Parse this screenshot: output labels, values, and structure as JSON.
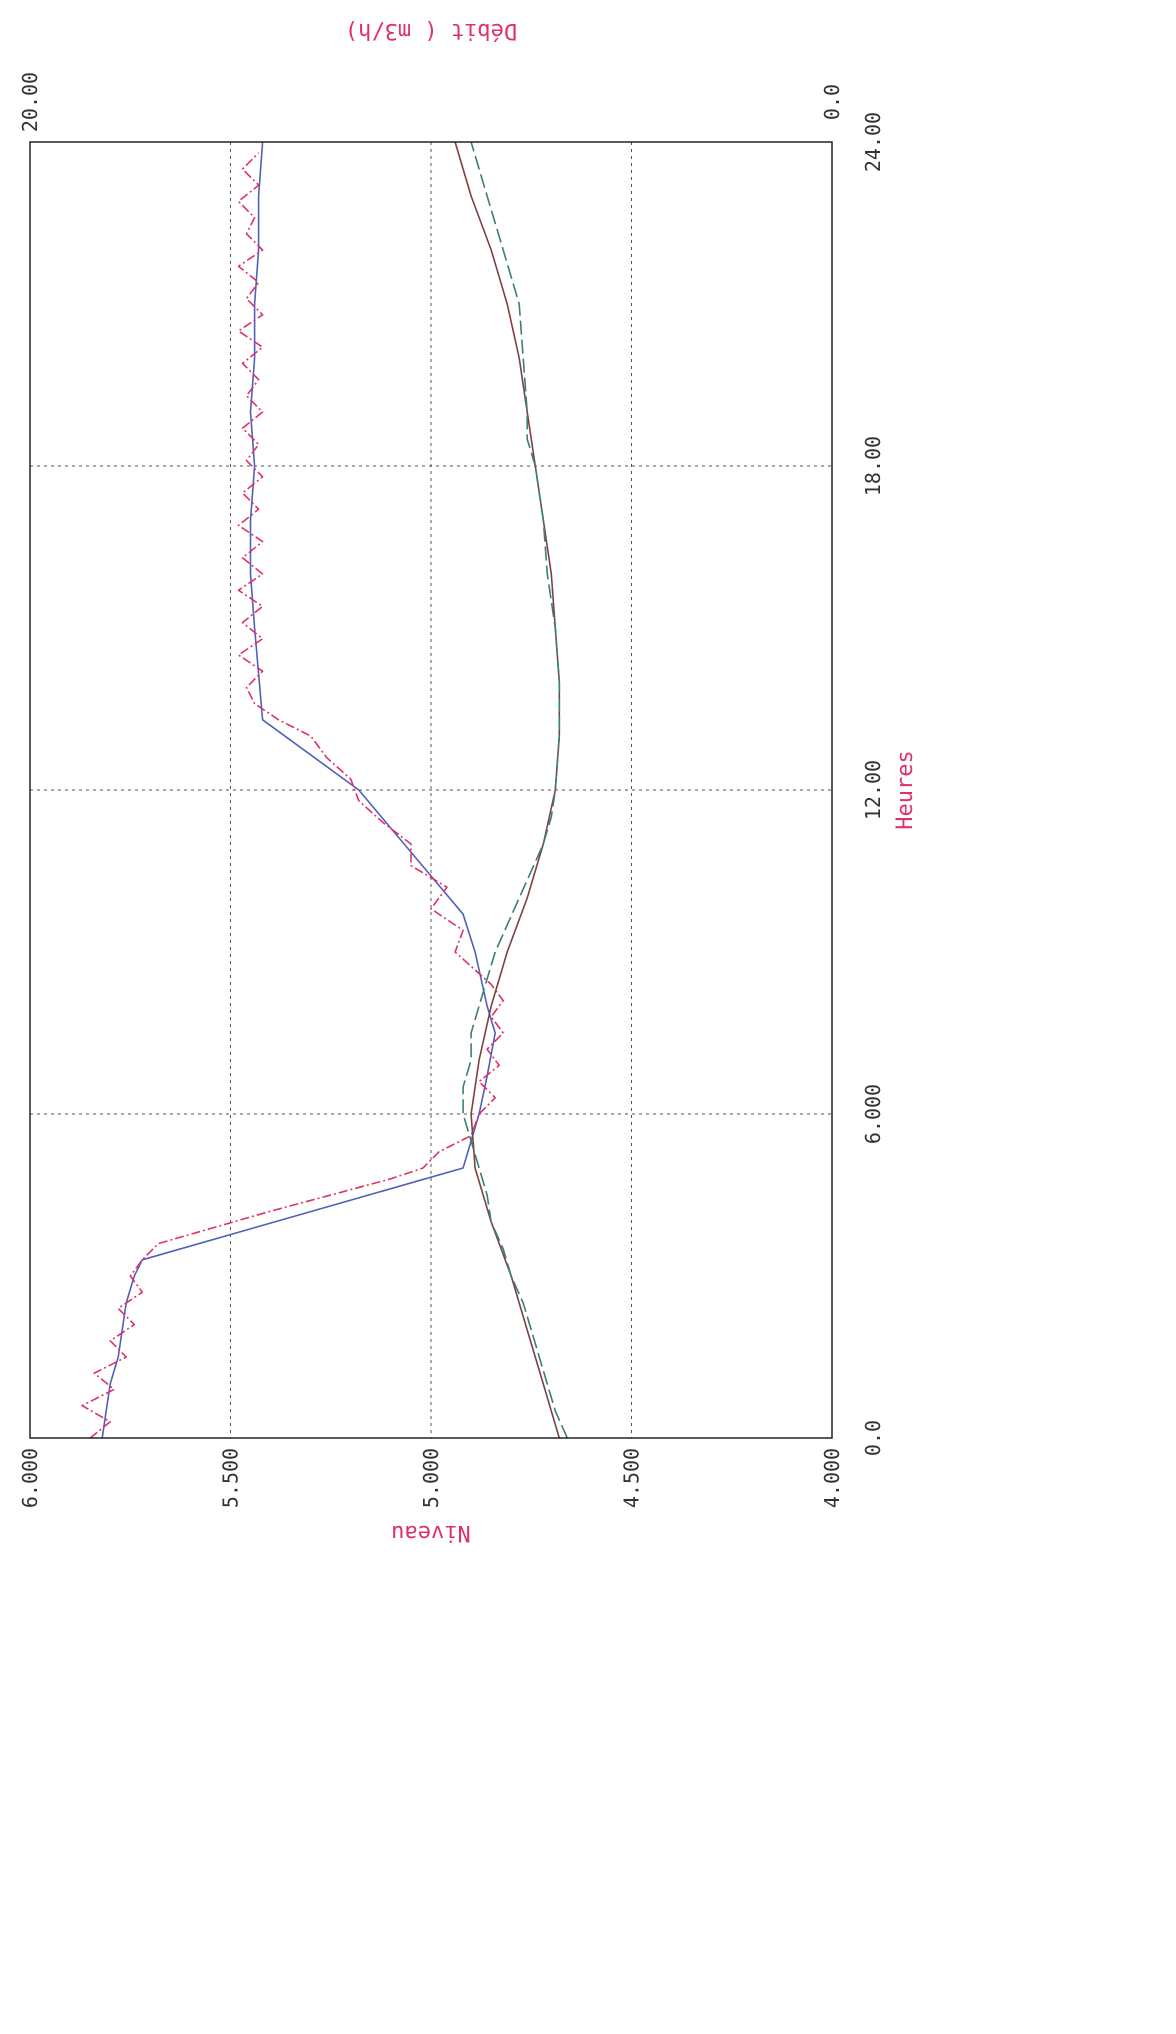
{
  "chart_data": {
    "type": "line",
    "orientation": "rotated-90-clockwise",
    "xlabel": "Heures",
    "ylabel_left": "Niveau",
    "ylabel_right": "Débit ( m3/h)",
    "x_ticks": [
      "0.0",
      "6.000",
      "12.00",
      "18.00",
      "24.00"
    ],
    "y_left_ticks": [
      "4.000",
      "4.500",
      "5.000",
      "5.500",
      "6.000"
    ],
    "y_right_ticks": [
      "0.0",
      "20.00"
    ],
    "xlim": [
      0,
      24
    ],
    "ylim_left": [
      4.0,
      6.0
    ],
    "ylim_right": [
      0,
      20
    ],
    "grid": true,
    "colors": {
      "axis": "#222222",
      "grid": "#555555",
      "label": "#e0306a",
      "tick": "#333333"
    },
    "series": [
      {
        "color": "#5060b8",
        "dash": "",
        "axis": "left",
        "x": [
          0,
          0.5,
          1,
          1.5,
          2,
          2.5,
          3,
          3.3,
          5.0,
          5.5,
          6.0,
          6.7,
          7.5,
          8.0,
          9.0,
          9.7,
          12.0,
          13.3,
          15.0,
          16.0,
          17.0,
          18.0,
          19.0,
          20.0,
          21.0,
          22.0,
          23.0,
          24.0
        ],
        "y": [
          5.82,
          5.81,
          5.8,
          5.78,
          5.77,
          5.76,
          5.74,
          5.72,
          4.92,
          4.9,
          4.88,
          4.86,
          4.84,
          4.86,
          4.89,
          4.92,
          5.18,
          5.42,
          5.44,
          5.45,
          5.45,
          5.44,
          5.45,
          5.44,
          5.44,
          5.43,
          5.43,
          5.42
        ]
      },
      {
        "color": "#e0306a",
        "dash": "9 3 2 3",
        "axis": "left",
        "x": [
          0,
          0.3,
          0.6,
          0.9,
          1.2,
          1.5,
          1.8,
          2.1,
          2.4,
          2.7,
          3.0,
          3.3,
          3.6,
          4.2,
          4.8,
          5.0,
          5.3,
          5.6,
          6.0,
          6.3,
          6.6,
          6.9,
          7.2,
          7.5,
          7.8,
          8.1,
          8.4,
          9.0,
          9.4,
          9.8,
          10.2,
          10.6,
          11.0,
          11.4,
          11.8,
          12.2,
          12.6,
          13.0,
          13.3,
          13.6,
          13.9,
          14.2,
          14.5,
          14.8,
          15.1,
          15.4,
          15.7,
          16.0,
          16.3,
          16.6,
          16.9,
          17.2,
          17.5,
          17.8,
          18.1,
          18.4,
          18.7,
          19.0,
          19.3,
          19.6,
          19.9,
          20.2,
          20.5,
          20.8,
          21.1,
          21.4,
          21.7,
          22.0,
          22.3,
          22.6,
          22.9,
          23.2,
          23.5,
          23.8
        ],
        "y": [
          5.85,
          5.8,
          5.87,
          5.79,
          5.84,
          5.76,
          5.8,
          5.74,
          5.78,
          5.72,
          5.75,
          5.72,
          5.68,
          5.4,
          5.1,
          5.02,
          4.98,
          4.9,
          4.88,
          4.84,
          4.88,
          4.83,
          4.86,
          4.82,
          4.85,
          4.82,
          4.85,
          4.94,
          4.92,
          5.0,
          4.96,
          5.05,
          5.05,
          5.12,
          5.18,
          5.2,
          5.26,
          5.3,
          5.38,
          5.44,
          5.46,
          5.42,
          5.48,
          5.42,
          5.47,
          5.42,
          5.48,
          5.42,
          5.47,
          5.42,
          5.48,
          5.43,
          5.47,
          5.42,
          5.46,
          5.43,
          5.47,
          5.42,
          5.46,
          5.43,
          5.47,
          5.42,
          5.48,
          5.42,
          5.46,
          5.43,
          5.48,
          5.42,
          5.46,
          5.44,
          5.48,
          5.43,
          5.47,
          5.43
        ]
      },
      {
        "color": "#804040",
        "dash": "",
        "axis": "right",
        "x": [
          0,
          1,
          2,
          3,
          4,
          5,
          6,
          7,
          8,
          9,
          10,
          11,
          12,
          13,
          14,
          15,
          16,
          17,
          18,
          19,
          20,
          21,
          22,
          23,
          24
        ],
        "y": [
          6.8,
          7.2,
          7.6,
          8.0,
          8.5,
          8.9,
          9.0,
          8.8,
          8.5,
          8.1,
          7.6,
          7.2,
          6.9,
          6.8,
          6.8,
          6.9,
          7.0,
          7.2,
          7.4,
          7.6,
          7.8,
          8.1,
          8.5,
          9.0,
          9.4
        ]
      },
      {
        "color": "#3a8070",
        "dash": "14 5",
        "axis": "right",
        "x": [
          0,
          0.5,
          1,
          1.5,
          2,
          2.5,
          3,
          3.5,
          4,
          4.5,
          5,
          5.5,
          6,
          6.5,
          7,
          7.5,
          8,
          8.5,
          9,
          9.5,
          10,
          10.5,
          11,
          11.5,
          12,
          13,
          14,
          15,
          16,
          17,
          18,
          18.5,
          19,
          20,
          21,
          21.5,
          22,
          22.5,
          23,
          23.5,
          24
        ],
        "y": [
          6.6,
          6.9,
          7.1,
          7.3,
          7.5,
          7.7,
          8.0,
          8.2,
          8.5,
          8.6,
          8.8,
          9.0,
          9.2,
          9.2,
          9.0,
          9.0,
          8.8,
          8.6,
          8.4,
          8.1,
          7.8,
          7.5,
          7.2,
          7.0,
          6.9,
          6.8,
          6.8,
          6.9,
          7.1,
          7.2,
          7.4,
          7.6,
          7.6,
          7.7,
          7.8,
          8.0,
          8.2,
          8.4,
          8.6,
          8.8,
          9.0
        ]
      }
    ]
  }
}
